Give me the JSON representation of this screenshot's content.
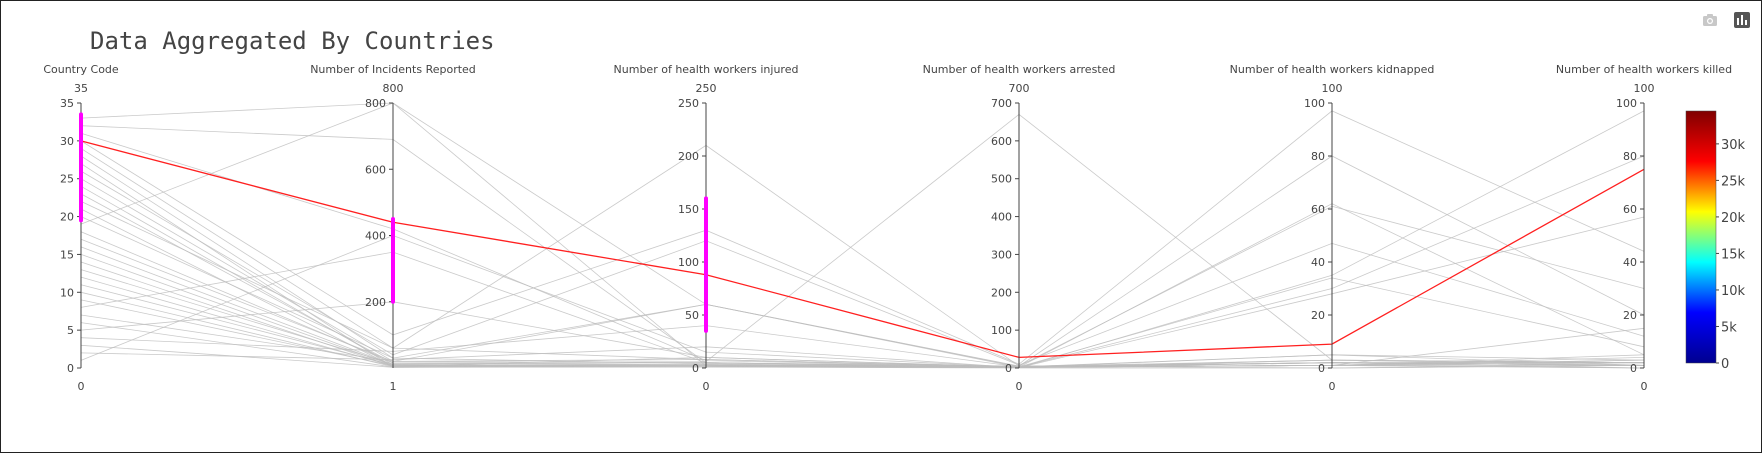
{
  "title": "Data Aggregated By Countries",
  "modebar": {
    "icons": [
      "camera-icon",
      "bar-chart-icon"
    ]
  },
  "chart_data": {
    "type": "parallel_coordinates",
    "title": "Data Aggregated By Countries",
    "dimensions": [
      {
        "label": "Country Code",
        "range": [
          0,
          35
        ],
        "ticks": [
          0,
          5,
          10,
          15,
          20,
          25,
          30,
          35
        ],
        "range_labels": [
          "0",
          "35"
        ],
        "constraint": [
          19.5,
          33.5
        ]
      },
      {
        "label": "Number of Incidents Reported",
        "range": [
          0,
          800
        ],
        "ticks": [
          200,
          400,
          600,
          800
        ],
        "range_labels": [
          "1",
          "800"
        ],
        "constraint": [
          200,
          450
        ]
      },
      {
        "label": "Number of health workers injured",
        "range": [
          0,
          250
        ],
        "ticks": [
          0,
          50,
          100,
          150,
          200,
          250
        ],
        "range_labels": [
          "0",
          "250"
        ],
        "constraint": [
          35,
          160
        ]
      },
      {
        "label": "Number of health workers arrested",
        "range": [
          0,
          700
        ],
        "ticks": [
          0,
          100,
          200,
          300,
          400,
          500,
          600,
          700
        ],
        "range_labels": [
          "0",
          "700"
        ]
      },
      {
        "label": "Number of health workers kidnapped",
        "range": [
          0,
          100
        ],
        "ticks": [
          0,
          20,
          40,
          60,
          80,
          100
        ],
        "range_labels": [
          "0",
          "100"
        ]
      },
      {
        "label": "Number of health workers killed",
        "range": [
          0,
          100
        ],
        "ticks": [
          0,
          20,
          40,
          60,
          80,
          100
        ],
        "range_labels": [
          "0",
          "100"
        ]
      }
    ],
    "highlighted_line": [
      30,
      440,
      88,
      28,
      9,
      75
    ],
    "lines": [
      [
        33,
        800,
        2,
        3,
        1,
        2
      ],
      [
        32,
        690,
        5,
        5,
        2,
        1
      ],
      [
        31,
        420,
        7,
        3,
        1,
        1
      ],
      [
        30,
        100,
        130,
        10,
        97,
        44
      ],
      [
        29,
        60,
        210,
        5,
        80,
        20
      ],
      [
        28,
        30,
        60,
        2,
        62,
        5
      ],
      [
        27,
        2,
        3,
        1,
        1,
        3
      ],
      [
        26,
        40,
        120,
        8,
        47,
        12
      ],
      [
        25,
        20,
        5,
        1,
        2,
        2
      ],
      [
        24,
        10,
        3,
        2,
        1,
        4
      ],
      [
        23,
        15,
        6,
        670,
        3,
        1
      ],
      [
        22,
        60,
        8,
        3,
        34,
        8
      ],
      [
        21,
        5,
        2,
        1,
        35,
        97
      ],
      [
        20,
        30,
        4,
        2,
        30,
        80
      ],
      [
        19,
        800,
        60,
        5,
        61,
        30
      ],
      [
        18,
        15,
        3,
        1,
        2,
        2
      ],
      [
        17,
        20,
        8,
        3,
        5,
        1
      ],
      [
        16,
        10,
        2,
        1,
        28,
        57
      ],
      [
        15,
        8,
        1,
        2,
        1,
        15
      ],
      [
        14,
        5,
        10,
        3,
        2,
        1
      ],
      [
        13,
        12,
        5,
        1,
        3,
        2
      ],
      [
        12,
        6,
        2,
        5,
        0,
        1
      ],
      [
        11,
        9,
        3,
        2,
        1,
        3
      ],
      [
        10,
        4,
        1,
        1,
        2,
        0
      ],
      [
        9,
        7,
        3,
        2,
        1,
        5
      ],
      [
        8,
        350,
        5,
        3,
        2,
        1
      ],
      [
        7,
        20,
        60,
        4,
        3,
        2
      ],
      [
        6,
        3,
        1,
        0,
        0,
        1
      ],
      [
        5,
        200,
        10,
        2,
        5,
        3
      ],
      [
        4,
        50,
        40,
        3,
        1,
        0
      ],
      [
        3,
        2,
        1,
        5,
        2,
        1
      ],
      [
        2,
        25,
        20,
        1,
        3,
        2
      ],
      [
        1,
        400,
        15,
        2,
        1,
        0
      ]
    ],
    "colorbar": {
      "ticks": [
        0,
        5000,
        10000,
        15000,
        20000,
        25000,
        30000
      ],
      "tick_labels": [
        "0",
        "5k",
        "10k",
        "15k",
        "20k",
        "25k",
        "30k"
      ],
      "range": [
        0,
        34500
      ],
      "colorscale": [
        "#00008f",
        "#0000ff",
        "#00ffff",
        "#ffff00",
        "#ff0000",
        "#800000"
      ]
    },
    "colors": {
      "context_line": "#bdbdbd",
      "highlighted_line": "#ff2020",
      "constraint": "#ff00ff",
      "axis": "#444444"
    }
  }
}
